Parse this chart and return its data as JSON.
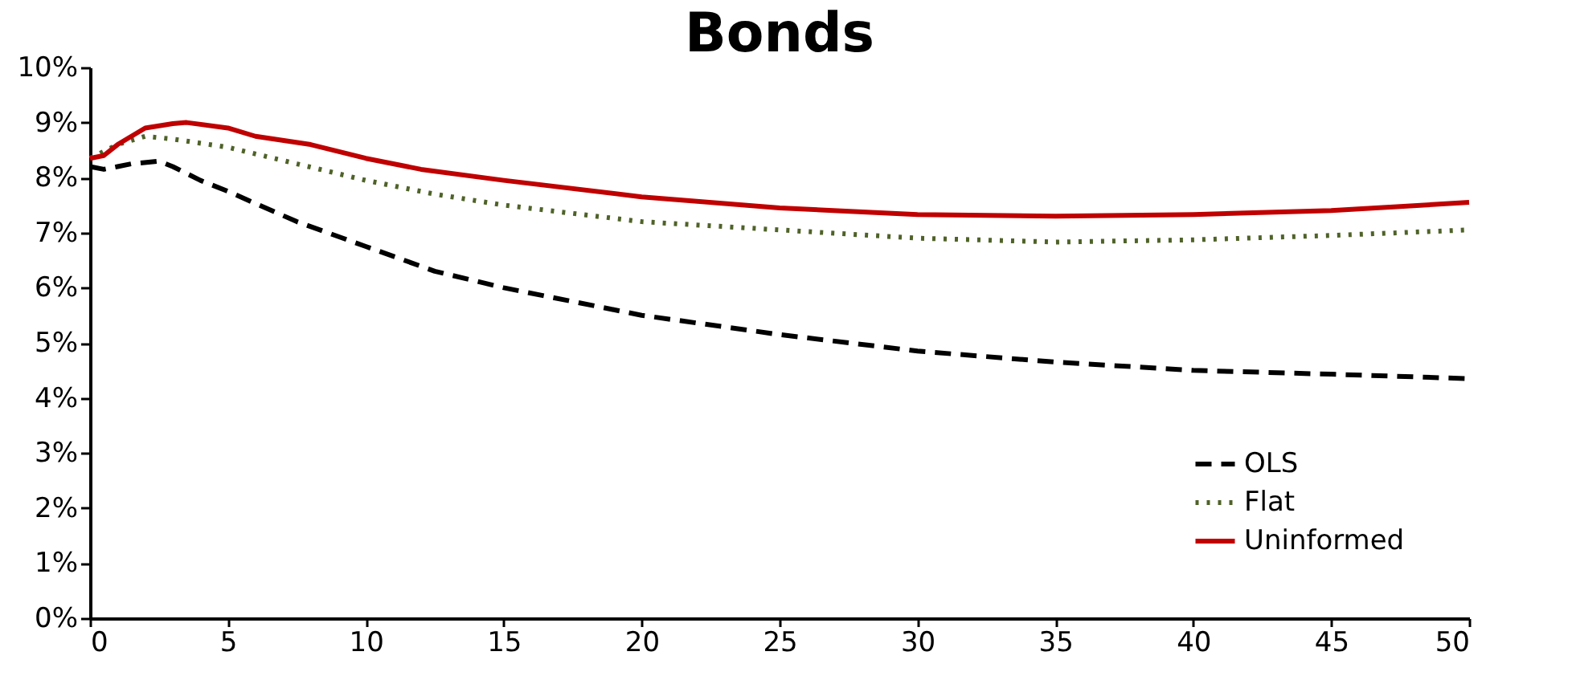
{
  "chart_data": {
    "type": "line",
    "title": "Bonds",
    "xlim": [
      0,
      50
    ],
    "xticks": [
      0,
      5,
      10,
      15,
      20,
      25,
      30,
      35,
      40,
      45,
      50
    ],
    "ylim": [
      0,
      10
    ],
    "yticks": [
      {
        "value": 0,
        "label": "0%"
      },
      {
        "value": 1,
        "label": "1%"
      },
      {
        "value": 2,
        "label": "2%"
      },
      {
        "value": 3,
        "label": "3%"
      },
      {
        "value": 4,
        "label": "4%"
      },
      {
        "value": 5,
        "label": "5%"
      },
      {
        "value": 6,
        "label": "6%"
      },
      {
        "value": 7,
        "label": "7%"
      },
      {
        "value": 8,
        "label": "8%"
      },
      {
        "value": 9,
        "label": "9%"
      },
      {
        "value": 10,
        "label": "10%"
      }
    ],
    "grid": false,
    "legend": "bottom right",
    "marker": "none",
    "series": [
      {
        "name": "OLS",
        "color": "#000000",
        "line_style": "dashed",
        "x": [
          0,
          0.5,
          1,
          1.5,
          2.5,
          3,
          4,
          5,
          7.5,
          10,
          12.5,
          15,
          20,
          25,
          30,
          35,
          40,
          45,
          50
        ],
        "values": [
          8.2,
          8.15,
          8.2,
          8.25,
          8.3,
          8.2,
          7.95,
          7.75,
          7.2,
          6.75,
          6.3,
          6.0,
          5.5,
          5.15,
          4.85,
          4.65,
          4.5,
          4.43,
          4.35
        ]
      },
      {
        "name": "Flat",
        "color": "#4f6228",
        "line_style": "dotted",
        "x": [
          0,
          1,
          2,
          3,
          5,
          7.5,
          10,
          12.5,
          15,
          20,
          25,
          30,
          35,
          40,
          45,
          50
        ],
        "values": [
          8.35,
          8.6,
          8.75,
          8.7,
          8.55,
          8.25,
          7.95,
          7.7,
          7.5,
          7.2,
          7.05,
          6.9,
          6.83,
          6.87,
          6.95,
          7.05
        ]
      },
      {
        "name": "Uninformed",
        "color": "#c00000",
        "line_style": "solid",
        "x": [
          0,
          0.5,
          1,
          2,
          3,
          3.5,
          5,
          6,
          8,
          10,
          12,
          15,
          20,
          25,
          30,
          35,
          40,
          45,
          50
        ],
        "values": [
          8.35,
          8.4,
          8.6,
          8.9,
          8.98,
          9.0,
          8.9,
          8.75,
          8.6,
          8.35,
          8.15,
          7.95,
          7.65,
          7.45,
          7.33,
          7.3,
          7.33,
          7.4,
          7.55
        ]
      }
    ]
  }
}
